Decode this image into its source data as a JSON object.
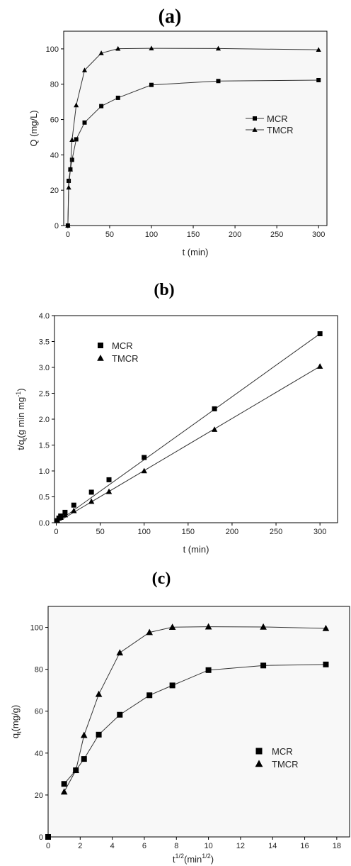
{
  "chart_data": [
    {
      "panel": "(a)",
      "type": "line",
      "xlabel": "t (min)",
      "ylabel": "Q (mg/L)",
      "xlim": [
        -5,
        310
      ],
      "ylim": [
        0,
        110
      ],
      "xticks": [
        0,
        50,
        100,
        150,
        200,
        250,
        300
      ],
      "yticks": [
        0,
        20,
        40,
        60,
        80,
        100
      ],
      "legend_position": "right-middle",
      "grid": false,
      "series": [
        {
          "name": "MCR",
          "marker": "square",
          "x": [
            0,
            1,
            3,
            5,
            10,
            20,
            40,
            60,
            100,
            180,
            300
          ],
          "y": [
            0,
            25.3,
            31.8,
            37.2,
            48.8,
            58.3,
            67.6,
            72.3,
            79.6,
            81.8,
            82.3
          ]
        },
        {
          "name": "TMCR",
          "marker": "triangle",
          "x": [
            0,
            1,
            3,
            5,
            10,
            20,
            40,
            60,
            100,
            180,
            300
          ],
          "y": [
            0,
            21.5,
            31.8,
            48.5,
            68.1,
            87.9,
            97.6,
            100.1,
            100.3,
            100.2,
            99.5
          ]
        }
      ]
    },
    {
      "panel": "(b)",
      "type": "scatter",
      "xlabel": "t (min)",
      "ylabel_main": "t/q",
      "ylabel_sub": "t",
      "ylabel_rest": "(g min mg",
      "ylabel_sup": "-1",
      "ylabel_close": ")",
      "xlim": [
        -2,
        320
      ],
      "ylim": [
        0,
        4.0
      ],
      "xticks": [
        0,
        50,
        100,
        150,
        200,
        250,
        300
      ],
      "yticks": [
        "0.0",
        "0.5",
        "1.0",
        "1.5",
        "2.0",
        "2.5",
        "3.0",
        "3.5",
        "4.0"
      ],
      "legend_position": "top-left",
      "grid": false,
      "series": [
        {
          "name": "MCR",
          "marker": "square",
          "x": [
            1,
            3,
            5,
            10,
            20,
            40,
            60,
            100,
            180,
            300
          ],
          "y": [
            0.04,
            0.09,
            0.13,
            0.2,
            0.34,
            0.59,
            0.83,
            1.26,
            2.2,
            3.65
          ],
          "fit": [
            0.0,
            3.65
          ]
        },
        {
          "name": "TMCR",
          "marker": "triangle",
          "x": [
            1,
            3,
            5,
            10,
            20,
            40,
            60,
            100,
            180,
            300
          ],
          "y": [
            0.05,
            0.09,
            0.1,
            0.15,
            0.23,
            0.41,
            0.6,
            1.0,
            1.8,
            3.02
          ],
          "fit": [
            0.0,
            3.02
          ]
        }
      ]
    },
    {
      "panel": "(c)",
      "type": "line",
      "xlabel_main": "t",
      "xlabel_sup": "1/2",
      "xlabel_rest": "(min",
      "xlabel_sup2": "1/2",
      "xlabel_close": ")",
      "ylabel_main": "q",
      "ylabel_sub": "t",
      "ylabel_rest": "(mg/g)",
      "xlim": [
        0,
        18.8
      ],
      "ylim": [
        0,
        110
      ],
      "xticks": [
        0,
        2,
        4,
        6,
        8,
        10,
        12,
        14,
        16,
        18
      ],
      "yticks": [
        0,
        20,
        40,
        60,
        80,
        100
      ],
      "legend_position": "right-middle",
      "grid": false,
      "series": [
        {
          "name": "MCR",
          "marker": "square",
          "x": [
            0,
            1,
            1.73,
            2.24,
            3.16,
            4.47,
            6.32,
            7.75,
            10,
            13.42,
            17.32
          ],
          "y": [
            0,
            25.3,
            31.8,
            37.2,
            48.8,
            58.3,
            67.6,
            72.3,
            79.6,
            81.8,
            82.3
          ],
          "line_from": 1
        },
        {
          "name": "TMCR",
          "marker": "triangle",
          "x": [
            1,
            1.73,
            2.24,
            3.16,
            4.47,
            6.32,
            7.75,
            10,
            13.42,
            17.32
          ],
          "y": [
            21.5,
            31.8,
            48.5,
            68.1,
            87.9,
            97.6,
            100.1,
            100.3,
            100.2,
            99.5
          ],
          "line_from": 0
        }
      ]
    }
  ]
}
